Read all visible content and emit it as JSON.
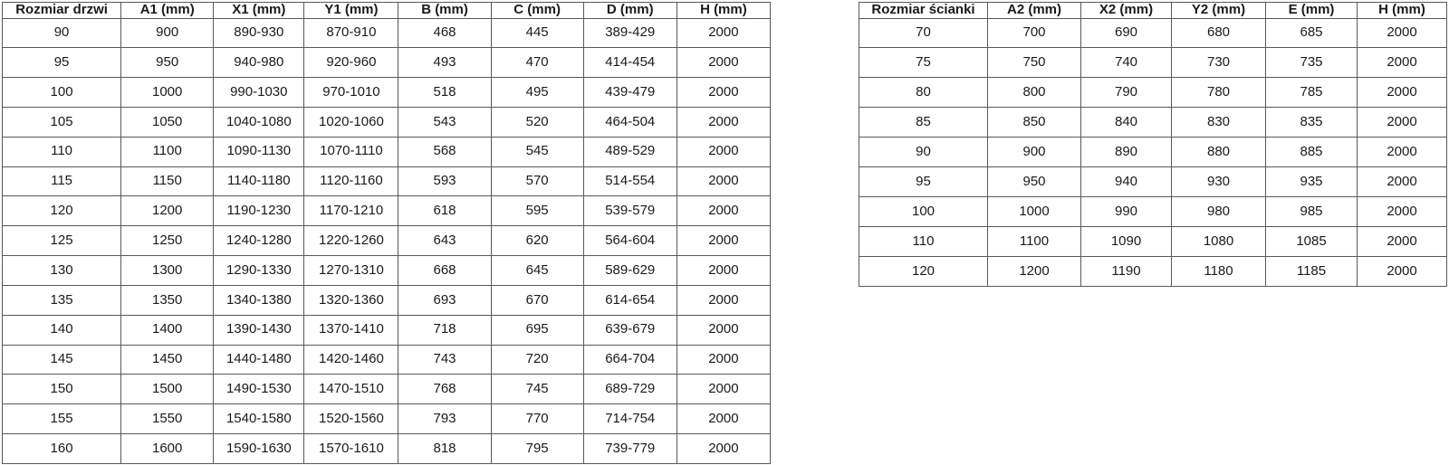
{
  "colors": {
    "border": "#595959",
    "text": "#1a1a1a",
    "background": "#ffffff"
  },
  "tables": [
    {
      "name": "door-size-table",
      "headers": [
        "Rozmiar drzwi",
        "A1 (mm)",
        "X1 (mm)",
        "Y1 (mm)",
        "B (mm)",
        "C (mm)",
        "D (mm)",
        "H (mm)"
      ],
      "rows": [
        [
          "90",
          "900",
          "890-930",
          "870-910",
          "468",
          "445",
          "389-429",
          "2000"
        ],
        [
          "95",
          "950",
          "940-980",
          "920-960",
          "493",
          "470",
          "414-454",
          "2000"
        ],
        [
          "100",
          "1000",
          "990-1030",
          "970-1010",
          "518",
          "495",
          "439-479",
          "2000"
        ],
        [
          "105",
          "1050",
          "1040-1080",
          "1020-1060",
          "543",
          "520",
          "464-504",
          "2000"
        ],
        [
          "110",
          "1100",
          "1090-1130",
          "1070-1110",
          "568",
          "545",
          "489-529",
          "2000"
        ],
        [
          "115",
          "1150",
          "1140-1180",
          "1120-1160",
          "593",
          "570",
          "514-554",
          "2000"
        ],
        [
          "120",
          "1200",
          "1190-1230",
          "1170-1210",
          "618",
          "595",
          "539-579",
          "2000"
        ],
        [
          "125",
          "1250",
          "1240-1280",
          "1220-1260",
          "643",
          "620",
          "564-604",
          "2000"
        ],
        [
          "130",
          "1300",
          "1290-1330",
          "1270-1310",
          "668",
          "645",
          "589-629",
          "2000"
        ],
        [
          "135",
          "1350",
          "1340-1380",
          "1320-1360",
          "693",
          "670",
          "614-654",
          "2000"
        ],
        [
          "140",
          "1400",
          "1390-1430",
          "1370-1410",
          "718",
          "695",
          "639-679",
          "2000"
        ],
        [
          "145",
          "1450",
          "1440-1480",
          "1420-1460",
          "743",
          "720",
          "664-704",
          "2000"
        ],
        [
          "150",
          "1500",
          "1490-1530",
          "1470-1510",
          "768",
          "745",
          "689-729",
          "2000"
        ],
        [
          "155",
          "1550",
          "1540-1580",
          "1520-1560",
          "793",
          "770",
          "714-754",
          "2000"
        ],
        [
          "160",
          "1600",
          "1590-1630",
          "1570-1610",
          "818",
          "795",
          "739-779",
          "2000"
        ]
      ]
    },
    {
      "name": "wall-size-table",
      "headers": [
        "Rozmiar ścianki",
        "A2 (mm)",
        "X2 (mm)",
        "Y2 (mm)",
        "E (mm)",
        "H (mm)"
      ],
      "rows": [
        [
          "70",
          "700",
          "690",
          "680",
          "685",
          "2000"
        ],
        [
          "75",
          "750",
          "740",
          "730",
          "735",
          "2000"
        ],
        [
          "80",
          "800",
          "790",
          "780",
          "785",
          "2000"
        ],
        [
          "85",
          "850",
          "840",
          "830",
          "835",
          "2000"
        ],
        [
          "90",
          "900",
          "890",
          "880",
          "885",
          "2000"
        ],
        [
          "95",
          "950",
          "940",
          "930",
          "935",
          "2000"
        ],
        [
          "100",
          "1000",
          "990",
          "980",
          "985",
          "2000"
        ],
        [
          "110",
          "1100",
          "1090",
          "1080",
          "1085",
          "2000"
        ],
        [
          "120",
          "1200",
          "1190",
          "1180",
          "1185",
          "2000"
        ]
      ]
    }
  ]
}
